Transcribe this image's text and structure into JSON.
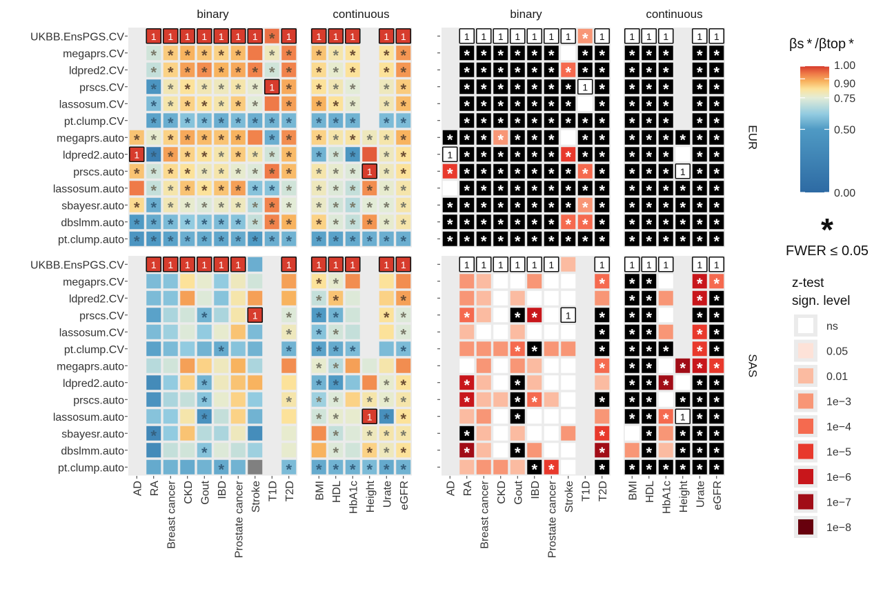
{
  "chart_data": {
    "type": "heatmap",
    "facet_rows": [
      "EUR",
      "SAS"
    ],
    "facet_col_headers": [
      "binary",
      "continuous",
      "binary",
      "continuous"
    ],
    "methods": [
      "UKBB.EnsPGS.CV",
      "megaprs.CV",
      "ldpred2.CV",
      "prscs.CV",
      "lassosum.CV",
      "pt.clump.CV",
      "megaprs.auto",
      "ldpred2.auto",
      "prscs.auto",
      "lassosum.auto",
      "sbayesr.auto",
      "dbslmm.auto",
      "pt.clump.auto"
    ],
    "traits_binary": [
      "AD",
      "RA",
      "Breast cancer",
      "CKD",
      "Gout",
      "IBD",
      "Prostate cancer",
      "Stroke",
      "T1D",
      "T2D"
    ],
    "traits_continuous": [
      "BMI",
      "HDL",
      "HbA1c",
      "Height",
      "Urate",
      "eGFR"
    ],
    "traits_all": [
      "AD",
      "RA",
      "Breast cancer",
      "CKD",
      "Gout",
      "IBD",
      "Prostate cancer",
      "Stroke",
      "T1D",
      "T2D",
      "BMI",
      "HDL",
      "HbA1c",
      "Height",
      "Urate",
      "eGFR"
    ],
    "ratio": {
      "EUR": [
        [
          null,
          1,
          1,
          1,
          1,
          1,
          1,
          1,
          0.95,
          1,
          1,
          1,
          1,
          null,
          1,
          1
        ],
        [
          null,
          0.72,
          0.85,
          0.88,
          0.86,
          0.84,
          0.87,
          0.94,
          0.78,
          0.93,
          0.86,
          0.8,
          0.82,
          null,
          0.82,
          0.91
        ],
        [
          null,
          0.7,
          0.84,
          0.9,
          0.92,
          0.88,
          0.89,
          0.93,
          0.72,
          0.93,
          0.83,
          0.76,
          0.82,
          null,
          0.82,
          0.91
        ],
        [
          null,
          0.45,
          0.79,
          0.82,
          0.79,
          0.78,
          0.8,
          0.76,
          1,
          0.89,
          0.82,
          0.79,
          0.75,
          null,
          0.78,
          0.85
        ],
        [
          null,
          0.58,
          0.8,
          0.84,
          0.82,
          0.8,
          0.85,
          0.75,
          0.94,
          0.9,
          0.88,
          0.82,
          0.76,
          null,
          0.79,
          0.87
        ],
        [
          null,
          0.52,
          0.55,
          0.6,
          0.58,
          0.55,
          0.58,
          0.55,
          0.56,
          0.57,
          0.56,
          0.55,
          0.56,
          null,
          0.58,
          0.58
        ],
        [
          0.86,
          0.76,
          0.84,
          0.89,
          0.87,
          0.86,
          0.88,
          0.93,
          0.55,
          0.92,
          0.84,
          0.8,
          0.81,
          0.78,
          0.8,
          0.88
        ],
        [
          1,
          0.22,
          0.9,
          0.84,
          0.82,
          0.8,
          0.85,
          0.8,
          0.72,
          0.87,
          0.56,
          0.72,
          0.46,
          0.97,
          0.78,
          0.82
        ],
        [
          0.86,
          0.72,
          0.83,
          0.82,
          0.78,
          0.8,
          0.76,
          0.74,
          0.94,
          0.87,
          0.8,
          0.76,
          0.74,
          1,
          0.78,
          0.82
        ],
        [
          0.94,
          0.7,
          0.8,
          0.86,
          0.82,
          0.86,
          0.9,
          0.6,
          0.6,
          0.72,
          0.78,
          0.74,
          0.7,
          0.92,
          0.76,
          0.8
        ],
        [
          0.83,
          0.55,
          0.79,
          0.76,
          0.74,
          0.77,
          0.78,
          0.68,
          0.93,
          0.75,
          0.77,
          0.72,
          0.68,
          0.75,
          0.75,
          0.8
        ],
        [
          0.5,
          0.54,
          0.58,
          0.62,
          0.6,
          0.58,
          0.6,
          0.7,
          0.93,
          0.88,
          0.84,
          0.74,
          0.7,
          0.91,
          0.76,
          0.8
        ],
        [
          0.45,
          0.48,
          0.52,
          0.55,
          0.54,
          0.53,
          0.54,
          0.5,
          0.55,
          0.56,
          0.52,
          0.52,
          0.54,
          0.55,
          0.55,
          0.55
        ]
      ],
      "SAS": [
        [
          null,
          1,
          1,
          1,
          1,
          1,
          1,
          0.55,
          null,
          1,
          1,
          1,
          1,
          null,
          1,
          1
        ],
        [
          null,
          0.58,
          0.6,
          0.82,
          0.76,
          0.62,
          0.78,
          0.72,
          null,
          0.9,
          0.82,
          0.76,
          0.92,
          null,
          0.82,
          0.92
        ],
        [
          null,
          0.58,
          0.6,
          0.9,
          0.74,
          0.6,
          0.8,
          0.9,
          null,
          0.88,
          0.7,
          0.86,
          0.74,
          null,
          0.84,
          0.9
        ],
        [
          null,
          0.52,
          0.66,
          0.72,
          0.56,
          0.66,
          0.8,
          1,
          null,
          0.74,
          0.5,
          0.56,
          0.72,
          null,
          0.82,
          0.74
        ],
        [
          null,
          0.58,
          0.64,
          0.74,
          0.62,
          0.76,
          0.86,
          0.58,
          null,
          0.78,
          0.6,
          0.72,
          0.7,
          null,
          0.82,
          0.74
        ],
        [
          null,
          0.52,
          0.58,
          0.62,
          0.56,
          0.54,
          0.6,
          0.56,
          null,
          0.56,
          0.52,
          0.54,
          0.58,
          null,
          0.58,
          0.58
        ],
        [
          null,
          0.68,
          0.72,
          0.9,
          0.84,
          0.78,
          0.88,
          0.66,
          null,
          0.92,
          0.76,
          0.68,
          0.9,
          0.74,
          0.8,
          0.92
        ],
        [
          null,
          0.34,
          0.62,
          0.84,
          0.56,
          0.78,
          0.86,
          0.88,
          null,
          0.82,
          0.56,
          0.5,
          0.6,
          0.92,
          0.76,
          0.82
        ],
        [
          null,
          0.42,
          0.66,
          0.7,
          0.6,
          0.76,
          0.84,
          0.62,
          null,
          0.8,
          0.64,
          0.74,
          0.84,
          0.8,
          0.76,
          0.8
        ],
        [
          null,
          0.6,
          0.62,
          0.8,
          0.42,
          0.7,
          0.84,
          0.56,
          null,
          0.82,
          0.72,
          0.76,
          0.76,
          1,
          0.4,
          0.82
        ],
        [
          null,
          0.3,
          0.62,
          0.86,
          0.68,
          0.66,
          0.78,
          0.36,
          null,
          0.76,
          0.92,
          0.7,
          0.74,
          0.78,
          0.8,
          0.8
        ],
        [
          null,
          0.34,
          0.7,
          0.72,
          0.6,
          0.74,
          0.7,
          0.64,
          null,
          0.76,
          0.88,
          0.74,
          0.72,
          0.84,
          0.78,
          0.82
        ],
        [
          null,
          0.54,
          0.56,
          0.54,
          0.56,
          0.54,
          0.56,
          -1,
          null,
          0.58,
          0.54,
          0.56,
          0.56,
          0.58,
          0.54,
          0.56
        ]
      ]
    },
    "sig_level": {
      "EUR": [
        [
          null,
          1,
          1,
          1,
          1,
          1,
          1,
          1,
          3,
          1,
          1,
          1,
          1,
          null,
          1,
          1
        ],
        [
          null,
          9,
          9,
          9,
          9,
          9,
          9,
          0,
          9,
          9,
          9,
          9,
          9,
          null,
          9,
          9
        ],
        [
          null,
          9,
          9,
          9,
          9,
          9,
          9,
          4,
          9,
          9,
          9,
          9,
          9,
          null,
          9,
          9
        ],
        [
          null,
          9,
          9,
          9,
          9,
          9,
          9,
          9,
          1,
          9,
          9,
          9,
          9,
          null,
          9,
          9
        ],
        [
          null,
          9,
          9,
          9,
          9,
          9,
          9,
          9,
          0,
          9,
          9,
          9,
          9,
          null,
          9,
          9
        ],
        [
          null,
          9,
          9,
          9,
          9,
          9,
          9,
          9,
          9,
          9,
          9,
          9,
          9,
          null,
          9,
          9
        ],
        [
          9,
          9,
          9,
          3,
          9,
          9,
          9,
          0,
          9,
          9,
          9,
          9,
          9,
          9,
          9,
          9
        ],
        [
          1,
          9,
          9,
          9,
          9,
          9,
          9,
          5,
          9,
          9,
          9,
          9,
          9,
          0,
          9,
          9
        ],
        [
          5,
          9,
          9,
          9,
          9,
          9,
          9,
          9,
          4,
          9,
          9,
          9,
          9,
          1,
          9,
          9
        ],
        [
          0,
          9,
          9,
          9,
          9,
          9,
          9,
          9,
          9,
          9,
          9,
          9,
          9,
          9,
          9,
          9
        ],
        [
          9,
          9,
          9,
          9,
          9,
          9,
          9,
          9,
          3,
          9,
          9,
          9,
          9,
          9,
          9,
          9
        ],
        [
          9,
          9,
          9,
          9,
          9,
          9,
          9,
          4,
          4,
          9,
          9,
          9,
          9,
          9,
          9,
          9
        ],
        [
          9,
          9,
          9,
          9,
          9,
          9,
          9,
          9,
          9,
          9,
          9,
          9,
          9,
          9,
          9,
          9
        ]
      ],
      "SAS": [
        [
          null,
          1,
          1,
          1,
          1,
          1,
          1,
          2,
          null,
          1,
          1,
          1,
          1,
          null,
          1,
          1
        ],
        [
          null,
          3,
          2,
          0,
          0,
          3,
          0,
          0,
          null,
          4,
          9,
          9,
          0,
          null,
          6,
          4
        ],
        [
          null,
          3,
          2,
          0,
          2,
          0,
          0,
          0,
          null,
          3,
          9,
          9,
          3,
          null,
          6,
          9
        ],
        [
          null,
          4,
          2,
          0,
          9,
          6,
          0,
          1,
          null,
          9,
          9,
          9,
          0,
          null,
          9,
          9
        ],
        [
          null,
          2,
          0,
          0,
          2,
          0,
          0,
          0,
          null,
          9,
          9,
          9,
          3,
          null,
          5,
          9
        ],
        [
          null,
          3,
          3,
          3,
          4,
          9,
          3,
          3,
          null,
          9,
          9,
          9,
          9,
          null,
          5,
          9
        ],
        [
          null,
          0,
          3,
          0,
          3,
          2,
          0,
          0,
          null,
          4,
          9,
          9,
          0,
          7,
          6,
          5
        ],
        [
          null,
          6,
          2,
          0,
          9,
          2,
          0,
          0,
          null,
          2,
          9,
          9,
          7,
          0,
          9,
          9
        ],
        [
          null,
          6,
          2,
          2,
          9,
          4,
          2,
          0,
          null,
          9,
          9,
          9,
          0,
          9,
          9,
          9
        ],
        [
          null,
          2,
          3,
          0,
          9,
          0,
          0,
          0,
          null,
          3,
          9,
          9,
          4,
          1,
          9,
          9
        ],
        [
          null,
          9,
          2,
          0,
          2,
          0,
          0,
          3,
          null,
          5,
          0,
          9,
          3,
          9,
          9,
          9
        ],
        [
          null,
          7,
          2,
          0,
          9,
          3,
          0,
          0,
          null,
          7,
          3,
          9,
          2,
          9,
          9,
          9
        ],
        [
          null,
          2,
          3,
          3,
          2,
          9,
          5,
          0,
          null,
          9,
          9,
          9,
          9,
          9,
          9,
          9
        ]
      ]
    },
    "colorbar": {
      "title": "βs * /βtop *",
      "ticks": [
        1.0,
        0.9,
        0.75,
        0.5,
        0.0
      ],
      "tick_labels": [
        "1.00",
        "0.90",
        "0.75",
        "0.50",
        "0.00"
      ],
      "stops": [
        "#2d6aa3",
        "#4f9ac4",
        "#92cbe0",
        "#e3ecd7",
        "#fce29a",
        "#f8b35f",
        "#ef7a48",
        "#d73c2d"
      ]
    },
    "star_legend": {
      "symbol": "*",
      "label": "FWER ≤ 0.05"
    },
    "sig_legend": {
      "title_line1": "z-test",
      "title_line2": "sign. level",
      "levels": [
        "ns",
        "0.05",
        "0.01",
        "1e−3",
        "1e−4",
        "1e−5",
        "1e−6",
        "1e−7",
        "1e−8"
      ],
      "colors": [
        "#ffffff",
        "#fde2d8",
        "#fbbba1",
        "#f89676",
        "#f56a4f",
        "#e8392c",
        "#c8161b",
        "#a10d17",
        "#67000d"
      ]
    },
    "marks": {
      "best_label": "1",
      "star": "*",
      "missing_color": "#808080"
    }
  }
}
